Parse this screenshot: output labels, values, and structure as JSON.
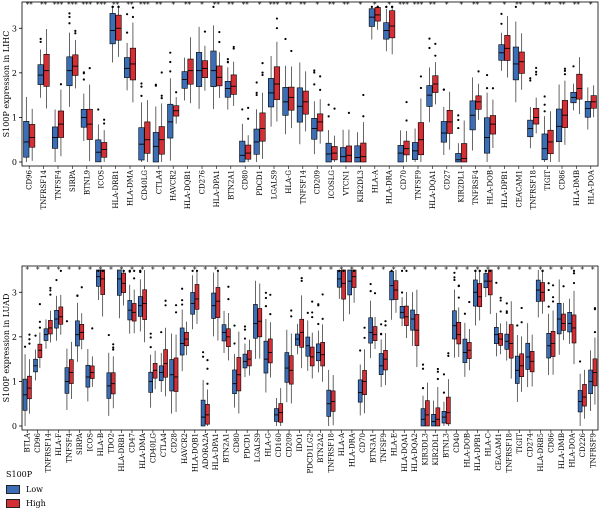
{
  "colors": {
    "low": "#3b6eb4",
    "high": "#d32f35"
  },
  "legend": {
    "title": "S100P",
    "items": [
      {
        "label": "Low",
        "color": "#3b6eb4"
      },
      {
        "label": "High",
        "color": "#d32f35"
      }
    ]
  },
  "chart_data": [
    {
      "type": "boxplot",
      "ylabel": "S100P expression in LIHC",
      "ylim": [
        0,
        3.5
      ],
      "yticks": [
        0,
        1,
        2,
        3
      ],
      "categories": [
        "CD96",
        "TNFRSF14",
        "TNFSF4",
        "SIRPA",
        "BTNL9",
        "ICOS",
        "HLA-DRB1",
        "HLA-DMA",
        "CD40LG",
        "CTLA4",
        "HAVCR2",
        "HLA-DQB1",
        "CD276",
        "HLA-DPA1",
        "BTN2A1",
        "CD80",
        "PDCD1",
        "LGALS9",
        "HLA-G",
        "TNFSF14",
        "CD209",
        "ICOSLG",
        "VTCN1",
        "KIR2DL3",
        "HLA-A",
        "HLA-DRA",
        "CD70",
        "TNFSF9",
        "HLA-DQA1",
        "CD27",
        "KIR2DL1",
        "TNFRSF4",
        "HLA-DOB",
        "HLA-DPB1",
        "CEACAM1",
        "TNFRSF18",
        "TIGIT",
        "CD86",
        "HLA-DMB",
        "HLA-DOA"
      ],
      "significance": [
        "**",
        "**",
        "***",
        "***",
        "***",
        "***",
        "**",
        "**",
        "***",
        "**",
        "*",
        "**",
        "*",
        "**",
        "**",
        "**",
        "*",
        "***",
        "**",
        "**",
        "*",
        "**",
        "**",
        "*",
        "*",
        "*",
        "***",
        "***",
        "**",
        "*",
        "*",
        "**",
        "*",
        "*",
        "**",
        "*",
        "**",
        "**",
        "**",
        "*"
      ],
      "series": [
        {
          "name": "Low",
          "values": [
            0.45,
            1.95,
            0.55,
            2.05,
            1.0,
            0.22,
            2.95,
            2.1,
            0.4,
            0.35,
            0.9,
            1.85,
            2.05,
            2.05,
            1.65,
            0.15,
            0.45,
            1.55,
            1.35,
            1.25,
            0.75,
            0.18,
            0.12,
            0.1,
            3.25,
            2.95,
            0.2,
            0.25,
            1.5,
            0.65,
            0.05,
            1.05,
            0.55,
            2.45,
            2.2,
            0.75,
            0.3,
            0.8,
            1.45,
            1.2
          ]
        },
        {
          "name": "High",
          "values": [
            0.55,
            2.05,
            0.85,
            2.15,
            0.85,
            0.28,
            3.0,
            2.2,
            0.5,
            0.5,
            1.15,
            2.05,
            2.1,
            1.9,
            1.7,
            0.2,
            0.75,
            1.75,
            1.45,
            1.35,
            0.9,
            0.2,
            0.15,
            0.12,
            3.3,
            3.05,
            0.3,
            0.5,
            1.75,
            0.9,
            0.08,
            1.35,
            0.85,
            2.55,
            2.25,
            1.0,
            0.45,
            1.05,
            1.65,
            1.35
          ]
        }
      ]
    },
    {
      "type": "boxplot",
      "ylabel": "S100P expression in LUAD",
      "ylim": [
        0,
        3.5
      ],
      "yticks": [
        0,
        1,
        2,
        3
      ],
      "categories": [
        "BTLA",
        "CD96",
        "TNFRSF14",
        "HLA-F",
        "TNFSF4",
        "SIRPA",
        "ICOS",
        "HLA-B",
        "TDO2",
        "HLA-DRB1",
        "CD47",
        "HLA-DMA",
        "CD40LG",
        "CTLA4",
        "CD28",
        "HAVCR2",
        "HLA-DQB1",
        "ADORA2A",
        "HLA-DPA1",
        "BTN2A1",
        "CD80",
        "PDCD1",
        "LGALS9",
        "HLA-G",
        "CD160",
        "CD209",
        "IDO1",
        "PDCD1LG2",
        "BTN2A2",
        "TNFRSF18",
        "HLA-A",
        "HLA-DRA",
        "CD70",
        "BTN3A1",
        "TNFSF9",
        "HLA-E",
        "HLA-DQA1",
        "HLA-DQA2",
        "KIR3DL3",
        "KIR2DL1",
        "BTNL3",
        "CD40",
        "HLA-DOB",
        "HLA-DPB1",
        "HLA-C",
        "CEACAM1",
        "TNFRSF18",
        "TIGIT",
        "CD274",
        "HLA-DRB5",
        "CD86",
        "HLA-DMB",
        "HLA-DOA",
        "CD226",
        "TNFRSF9"
      ],
      "significance": [
        "*",
        "*",
        "*",
        "*",
        "*",
        "*",
        "*",
        "*",
        "*",
        "*",
        "*",
        "*",
        "*",
        "*",
        "*",
        "*",
        "*",
        "*",
        "*",
        "*",
        "*",
        "*",
        "*",
        "*",
        "*",
        "*",
        "*",
        "*",
        "*",
        "*",
        "*",
        "*",
        "*",
        "*",
        "*",
        "*",
        "*",
        "*",
        "*",
        "*",
        "*",
        "*",
        "*",
        "*",
        "*",
        "*",
        "*",
        "*",
        "*",
        "*",
        "*",
        "*",
        "*",
        "*",
        "*"
      ],
      "series": [
        {
          "name": "Low",
          "values": [
            0.7,
            1.35,
            2.05,
            2.4,
            1.0,
            2.05,
            1.1,
            3.35,
            0.9,
            3.3,
            2.6,
            2.7,
            1.0,
            1.2,
            1.15,
            1.85,
            2.75,
            0.2,
            2.7,
            2.1,
            0.95,
            1.45,
            2.3,
            1.5,
            0.25,
            1.3,
            1.95,
            1.8,
            1.65,
            0.5,
            3.3,
            3.25,
            0.75,
            2.1,
            1.35,
            3.15,
            2.55,
            2.4,
            0.15,
            0.1,
            0.2,
            2.25,
            1.65,
            3.0,
            3.25,
            2.05,
            1.9,
            1.25,
            1.55,
            3.05,
            1.8,
            2.4,
            2.3,
            0.55,
            1.0
          ]
        },
        {
          "name": "High",
          "values": [
            0.85,
            1.7,
            2.2,
            2.45,
            1.2,
            2.1,
            1.2,
            3.3,
            0.95,
            3.2,
            2.55,
            2.75,
            1.25,
            1.4,
            1.1,
            1.95,
            2.85,
            0.25,
            2.8,
            2.0,
            1.15,
            1.5,
            2.35,
            1.65,
            0.3,
            1.25,
            2.1,
            1.55,
            1.6,
            0.55,
            3.2,
            3.35,
            1.0,
            2.05,
            1.5,
            3.05,
            2.45,
            2.15,
            0.25,
            0.15,
            0.3,
            2.05,
            1.7,
            2.9,
            3.25,
            1.95,
            1.85,
            1.35,
            1.45,
            3.0,
            1.85,
            2.3,
            2.2,
            0.65,
            1.2
          ]
        }
      ]
    }
  ]
}
